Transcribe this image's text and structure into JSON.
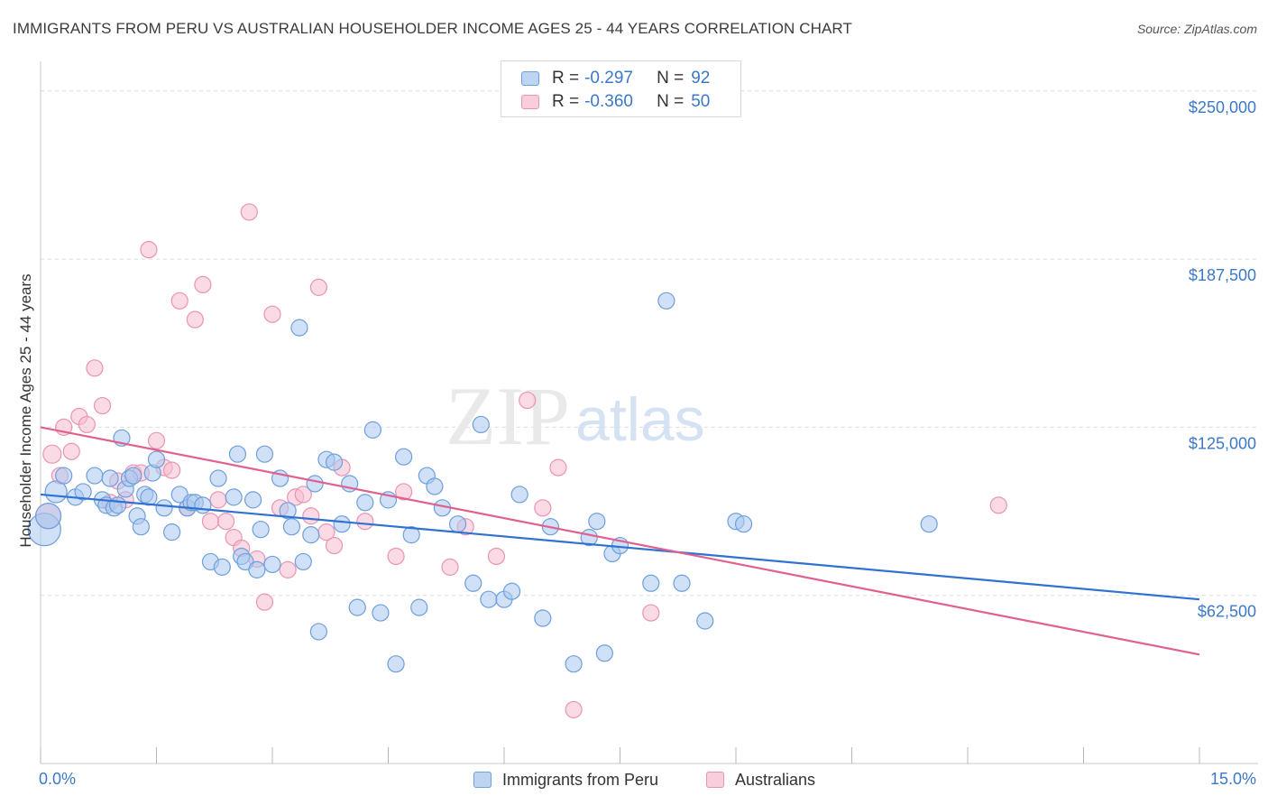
{
  "header": {
    "title": "IMMIGRANTS FROM PERU VS AUSTRALIAN HOUSEHOLDER INCOME AGES 25 - 44 YEARS CORRELATION CHART",
    "source": "Source: ZipAtlas.com"
  },
  "watermark": {
    "zip": "ZIP",
    "atlas": "atlas"
  },
  "legend": {
    "rows": [
      {
        "r_label": "R =",
        "r_value": "-0.297",
        "n_label": "N =",
        "n_value": "92"
      },
      {
        "r_label": "R =",
        "r_value": "-0.360",
        "n_label": "N =",
        "n_value": "50"
      }
    ]
  },
  "bottom_legend": {
    "series1": "Immigrants from Peru",
    "series2": "Australians"
  },
  "colors": {
    "series1_fill": "#a9c8f0",
    "series1_stroke": "#6d9fdc",
    "series1_line": "#2f72d2",
    "series2_fill": "#f6bcd0",
    "series2_stroke": "#e994b2",
    "series2_line": "#e0608f",
    "axis_text": "#3b79c7",
    "grid": "#dcdcdc"
  },
  "chart_data": {
    "type": "scatter",
    "title": "IMMIGRANTS FROM PERU VS AUSTRALIAN HOUSEHOLDER INCOME AGES 25 - 44 YEARS CORRELATION CHART",
    "xlabel": "",
    "ylabel": "Householder Income Ages 25 - 44 years",
    "xlim": [
      0,
      15
    ],
    "ylim": [
      0,
      261000
    ],
    "x_tick_labels": [
      "0.0%",
      "15.0%"
    ],
    "y_ticks": [
      62500,
      125000,
      187500,
      250000
    ],
    "y_tick_labels": [
      "$62,500",
      "$125,000",
      "$187,500",
      "$250,000"
    ],
    "grid": true,
    "legend_position": "top-center",
    "series": [
      {
        "name": "Immigrants from Peru",
        "trend": {
          "x": [
            0.0,
            15.0
          ],
          "y": [
            100000,
            61000
          ]
        },
        "points": [
          [
            0.05,
            87000,
            18
          ],
          [
            0.1,
            92000,
            14
          ],
          [
            0.2,
            101000,
            12
          ],
          [
            0.3,
            107000,
            9
          ],
          [
            0.45,
            99000,
            9
          ],
          [
            0.55,
            101000,
            9
          ],
          [
            0.7,
            107000,
            9
          ],
          [
            0.8,
            98000,
            9
          ],
          [
            0.85,
            96000,
            9
          ],
          [
            0.9,
            106000,
            9
          ],
          [
            0.95,
            95000,
            9
          ],
          [
            1.0,
            96000,
            9
          ],
          [
            1.05,
            121000,
            9
          ],
          [
            1.1,
            102000,
            9
          ],
          [
            1.15,
            106000,
            9
          ],
          [
            1.2,
            107000,
            9
          ],
          [
            1.25,
            92000,
            9
          ],
          [
            1.3,
            88000,
            9
          ],
          [
            1.35,
            100000,
            9
          ],
          [
            1.4,
            99000,
            9
          ],
          [
            1.45,
            108000,
            9
          ],
          [
            1.5,
            113000,
            9
          ],
          [
            1.6,
            95000,
            9
          ],
          [
            1.7,
            86000,
            9
          ],
          [
            1.8,
            100000,
            9
          ],
          [
            1.9,
            95000,
            9
          ],
          [
            1.95,
            97000,
            9
          ],
          [
            2.0,
            97000,
            9
          ],
          [
            2.1,
            96000,
            9
          ],
          [
            2.2,
            75000,
            9
          ],
          [
            2.3,
            106000,
            9
          ],
          [
            2.35,
            73000,
            9
          ],
          [
            2.5,
            99000,
            9
          ],
          [
            2.55,
            115000,
            9
          ],
          [
            2.6,
            77000,
            9
          ],
          [
            2.65,
            75000,
            9
          ],
          [
            2.75,
            98000,
            9
          ],
          [
            2.8,
            72000,
            9
          ],
          [
            2.85,
            87000,
            9
          ],
          [
            2.9,
            115000,
            9
          ],
          [
            3.0,
            74000,
            9
          ],
          [
            3.1,
            106000,
            9
          ],
          [
            3.2,
            94000,
            9
          ],
          [
            3.25,
            88000,
            9
          ],
          [
            3.35,
            162000,
            9
          ],
          [
            3.4,
            75000,
            9
          ],
          [
            3.5,
            85000,
            9
          ],
          [
            3.55,
            104000,
            9
          ],
          [
            3.6,
            49000,
            9
          ],
          [
            3.7,
            113000,
            9
          ],
          [
            3.8,
            112000,
            9
          ],
          [
            3.9,
            89000,
            9
          ],
          [
            4.0,
            104000,
            9
          ],
          [
            4.1,
            58000,
            9
          ],
          [
            4.2,
            97000,
            9
          ],
          [
            4.3,
            124000,
            9
          ],
          [
            4.4,
            56000,
            9
          ],
          [
            4.5,
            98000,
            9
          ],
          [
            4.6,
            37000,
            9
          ],
          [
            4.7,
            114000,
            9
          ],
          [
            4.8,
            85000,
            9
          ],
          [
            4.9,
            58000,
            9
          ],
          [
            5.0,
            107000,
            9
          ],
          [
            5.1,
            103000,
            9
          ],
          [
            5.2,
            95000,
            9
          ],
          [
            5.4,
            89000,
            9
          ],
          [
            5.6,
            67000,
            9
          ],
          [
            5.7,
            126000,
            9
          ],
          [
            5.8,
            61000,
            9
          ],
          [
            6.0,
            61000,
            9
          ],
          [
            6.1,
            64000,
            9
          ],
          [
            6.2,
            100000,
            9
          ],
          [
            6.5,
            54000,
            9
          ],
          [
            6.6,
            88000,
            9
          ],
          [
            6.9,
            37000,
            9
          ],
          [
            7.1,
            84000,
            9
          ],
          [
            7.2,
            90000,
            9
          ],
          [
            7.3,
            41000,
            9
          ],
          [
            7.4,
            78000,
            9
          ],
          [
            7.5,
            81000,
            9
          ],
          [
            7.9,
            67000,
            9
          ],
          [
            8.1,
            172000,
            9
          ],
          [
            8.3,
            67000,
            9
          ],
          [
            8.6,
            53000,
            9
          ],
          [
            9.0,
            90000,
            9
          ],
          [
            9.1,
            89000,
            9
          ],
          [
            11.5,
            89000,
            9
          ]
        ]
      },
      {
        "name": "Australians",
        "trend": {
          "x": [
            0.0,
            15.0
          ],
          "y": [
            125000,
            40500
          ]
        },
        "points": [
          [
            0.1,
            92000,
            14
          ],
          [
            0.15,
            115000,
            10
          ],
          [
            0.25,
            107000,
            9
          ],
          [
            0.3,
            125000,
            9
          ],
          [
            0.4,
            116000,
            9
          ],
          [
            0.5,
            129000,
            9
          ],
          [
            0.6,
            126000,
            9
          ],
          [
            0.7,
            147000,
            9
          ],
          [
            0.8,
            133000,
            9
          ],
          [
            0.9,
            97000,
            9
          ],
          [
            1.0,
            105000,
            9
          ],
          [
            1.1,
            98000,
            9
          ],
          [
            1.2,
            108000,
            9
          ],
          [
            1.3,
            108000,
            9
          ],
          [
            1.4,
            191000,
            9
          ],
          [
            1.5,
            120000,
            9
          ],
          [
            1.6,
            110000,
            9
          ],
          [
            1.7,
            109000,
            9
          ],
          [
            1.8,
            172000,
            9
          ],
          [
            1.9,
            95000,
            9
          ],
          [
            2.0,
            165000,
            9
          ],
          [
            2.1,
            178000,
            9
          ],
          [
            2.2,
            90000,
            9
          ],
          [
            2.3,
            98000,
            9
          ],
          [
            2.4,
            90000,
            9
          ],
          [
            2.5,
            84000,
            9
          ],
          [
            2.6,
            80000,
            9
          ],
          [
            2.7,
            205000,
            9
          ],
          [
            2.8,
            76000,
            9
          ],
          [
            2.9,
            60000,
            9
          ],
          [
            3.0,
            167000,
            9
          ],
          [
            3.1,
            95000,
            9
          ],
          [
            3.2,
            72000,
            9
          ],
          [
            3.3,
            99000,
            9
          ],
          [
            3.4,
            100000,
            9
          ],
          [
            3.5,
            92000,
            9
          ],
          [
            3.6,
            177000,
            9
          ],
          [
            3.7,
            86000,
            9
          ],
          [
            3.8,
            81000,
            9
          ],
          [
            3.9,
            110000,
            9
          ],
          [
            4.2,
            90000,
            9
          ],
          [
            4.6,
            77000,
            9
          ],
          [
            4.7,
            101000,
            9
          ],
          [
            5.3,
            73000,
            9
          ],
          [
            5.5,
            88000,
            9
          ],
          [
            5.9,
            77000,
            9
          ],
          [
            6.3,
            135000,
            9
          ],
          [
            6.5,
            95000,
            9
          ],
          [
            6.7,
            110000,
            9
          ],
          [
            6.9,
            20000,
            9
          ],
          [
            7.9,
            56000,
            9
          ],
          [
            12.4,
            96000,
            9
          ]
        ]
      }
    ]
  }
}
